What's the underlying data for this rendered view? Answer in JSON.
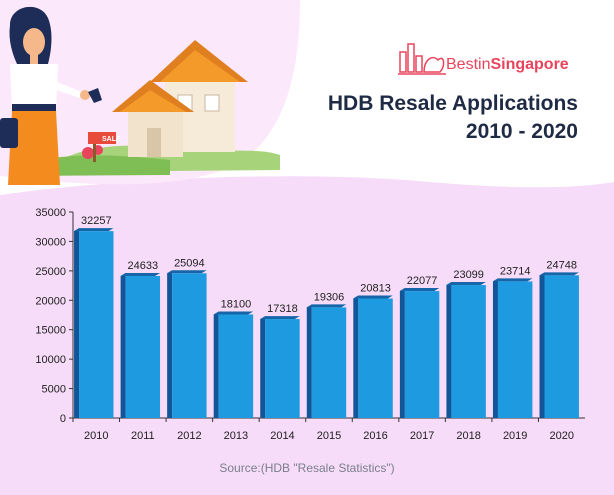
{
  "brand": {
    "name_part1": "Bestin",
    "name_part2": "Singapore"
  },
  "illustration": {
    "sign_label": "SALE"
  },
  "chart_data": {
    "type": "bar",
    "title_line1": "HDB Resale Applications",
    "title_line2": "2010 - 2020",
    "categories": [
      "2010",
      "2011",
      "2012",
      "2013",
      "2014",
      "2015",
      "2016",
      "2017",
      "2018",
      "2019",
      "2020"
    ],
    "values": [
      32257,
      24633,
      25094,
      18100,
      17318,
      19306,
      20813,
      22077,
      23099,
      23714,
      24748
    ],
    "ylim": [
      0,
      35000
    ],
    "yticks": [
      0,
      5000,
      10000,
      15000,
      20000,
      25000,
      30000,
      35000
    ],
    "bar_color": "#1e9be0",
    "bar_top_color": "#1565a8",
    "bar_side_color": "#12569a",
    "source": "Source:(HDB \"Resale Statistics\")"
  },
  "colors": {
    "title": "#1f2a44",
    "brand": "#e8455c",
    "band": "#f6dcf8"
  }
}
